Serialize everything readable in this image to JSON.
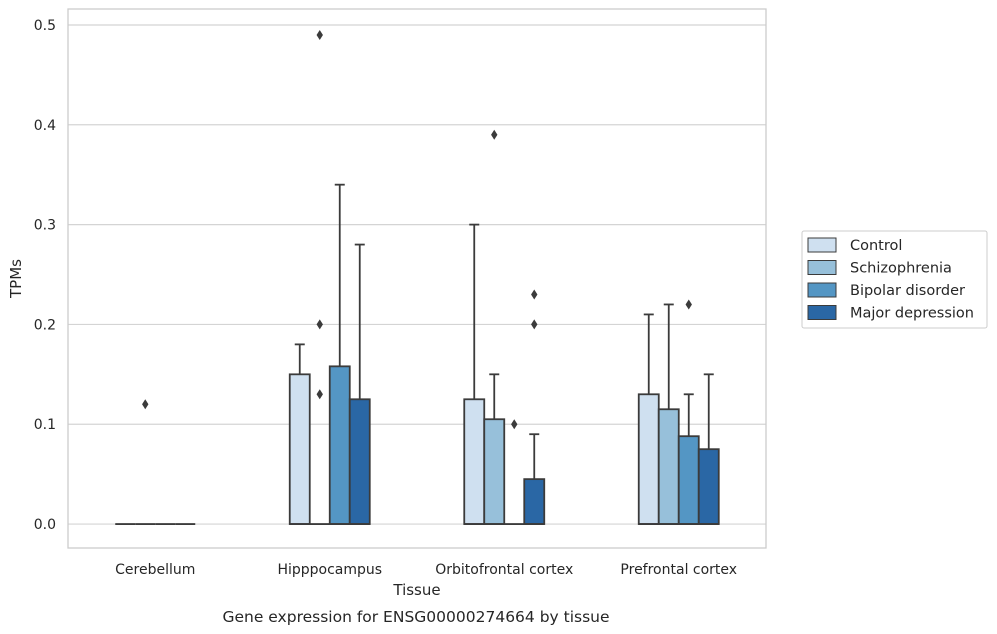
{
  "chart_data": {
    "type": "box",
    "caption": "Gene expression for ENSG00000274664 by tissue",
    "xlabel": "Tissue",
    "ylabel": "TPMs",
    "ylim": [
      -0.024,
      0.516
    ],
    "yticks": [
      0.0,
      0.1,
      0.2,
      0.3,
      0.4,
      0.5
    ],
    "ytick_labels": [
      "0.0",
      "0.1",
      "0.2",
      "0.3",
      "0.4",
      "0.5"
    ],
    "grid": "horizontal",
    "legend_position": "right",
    "categories": [
      "Cerebellum",
      "Hipppocampus",
      "Orbitofrontal cortex",
      "Prefrontal cortex"
    ],
    "series": [
      {
        "name": "Control",
        "color": "#cfe0f0",
        "boxes": [
          {
            "q1": 0,
            "median": 0,
            "q3": 0,
            "whisker_low": 0,
            "whisker_high": 0,
            "outliers": []
          },
          {
            "q1": 0,
            "median": 0,
            "q3": 0.15,
            "whisker_low": 0,
            "whisker_high": 0.18,
            "outliers": []
          },
          {
            "q1": 0,
            "median": 0,
            "q3": 0.125,
            "whisker_low": 0,
            "whisker_high": 0.3,
            "outliers": []
          },
          {
            "q1": 0,
            "median": 0,
            "q3": 0.13,
            "whisker_low": 0,
            "whisker_high": 0.21,
            "outliers": []
          }
        ]
      },
      {
        "name": "Schizophrenia",
        "color": "#97c0da",
        "boxes": [
          {
            "q1": 0,
            "median": 0,
            "q3": 0,
            "whisker_low": 0,
            "whisker_high": 0,
            "outliers": [
              0.12
            ]
          },
          {
            "q1": 0,
            "median": 0,
            "q3": 0,
            "whisker_low": 0,
            "whisker_high": 0,
            "outliers": [
              0.13,
              0.2,
              0.49
            ]
          },
          {
            "q1": 0,
            "median": 0,
            "q3": 0.105,
            "whisker_low": 0,
            "whisker_high": 0.15,
            "outliers": [
              0.39
            ]
          },
          {
            "q1": 0,
            "median": 0,
            "q3": 0.115,
            "whisker_low": 0,
            "whisker_high": 0.22,
            "outliers": []
          }
        ]
      },
      {
        "name": "Bipolar disorder",
        "color": "#5496c4",
        "boxes": [
          {
            "q1": 0,
            "median": 0,
            "q3": 0,
            "whisker_low": 0,
            "whisker_high": 0,
            "outliers": []
          },
          {
            "q1": 0,
            "median": 0,
            "q3": 0.158,
            "whisker_low": 0,
            "whisker_high": 0.34,
            "outliers": []
          },
          {
            "q1": 0,
            "median": 0,
            "q3": 0,
            "whisker_low": 0,
            "whisker_high": 0,
            "outliers": [
              0.1
            ]
          },
          {
            "q1": 0,
            "median": 0,
            "q3": 0.088,
            "whisker_low": 0,
            "whisker_high": 0.13,
            "outliers": [
              0.22
            ]
          }
        ]
      },
      {
        "name": "Major depression",
        "color": "#2a67a5",
        "boxes": [
          {
            "q1": 0,
            "median": 0,
            "q3": 0,
            "whisker_low": 0,
            "whisker_high": 0,
            "outliers": []
          },
          {
            "q1": 0,
            "median": 0,
            "q3": 0.125,
            "whisker_low": 0,
            "whisker_high": 0.28,
            "outliers": []
          },
          {
            "q1": 0,
            "median": 0,
            "q3": 0.045,
            "whisker_low": 0,
            "whisker_high": 0.09,
            "outliers": [
              0.2,
              0.23
            ]
          },
          {
            "q1": 0,
            "median": 0,
            "q3": 0.075,
            "whisker_low": 0,
            "whisker_high": 0.15,
            "outliers": []
          }
        ]
      }
    ]
  }
}
